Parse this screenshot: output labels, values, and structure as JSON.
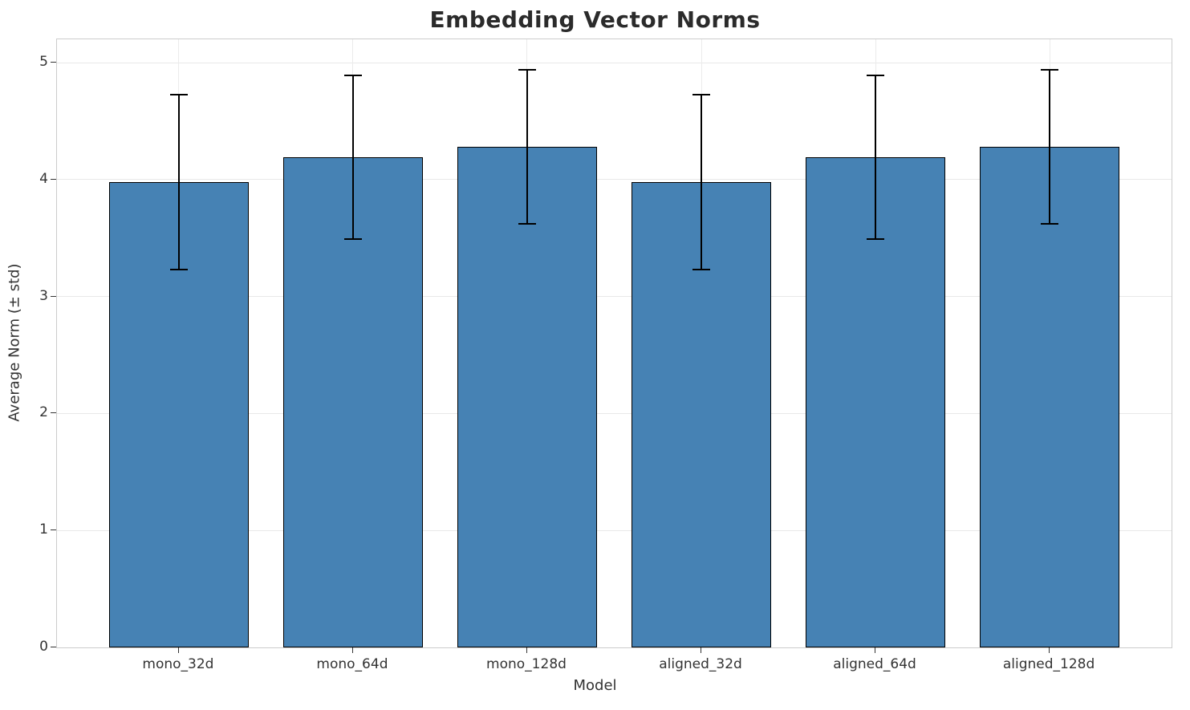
{
  "chart_data": {
    "type": "bar",
    "title": "Embedding Vector Norms",
    "xlabel": "Model",
    "ylabel": "Average Norm (± std)",
    "categories": [
      "mono_32d",
      "mono_64d",
      "mono_128d",
      "aligned_32d",
      "aligned_64d",
      "aligned_128d"
    ],
    "values": [
      3.98,
      4.19,
      4.28,
      3.98,
      4.19,
      4.28
    ],
    "errors": [
      0.75,
      0.7,
      0.66,
      0.75,
      0.7,
      0.66
    ],
    "yticks": [
      0,
      1,
      2,
      3,
      4,
      5
    ],
    "ylim": [
      0,
      5.2
    ],
    "grid": true,
    "legend": "none",
    "bar_color": "#4682b4",
    "bar_edge_color": "#000000",
    "error_color": "#000000"
  }
}
